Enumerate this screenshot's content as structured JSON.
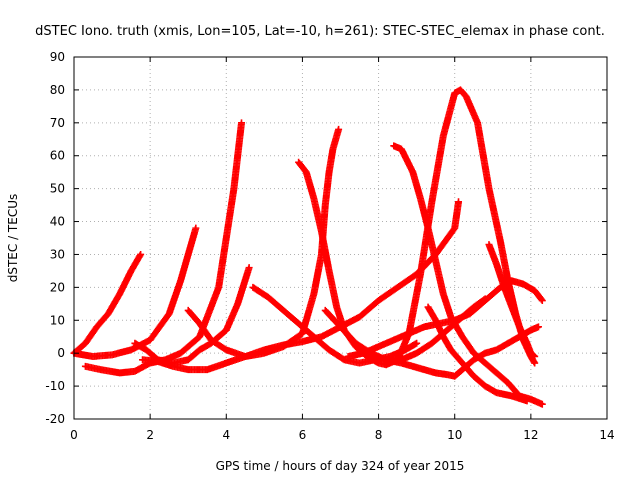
{
  "chart_data": {
    "type": "scatter",
    "title": "dSTEC Iono. truth (xmis, Lon=105, Lat=-10, h=261): STEC-STEC_elemax in phase cont.",
    "xlabel": "GPS time / hours of day 324 of year 2015",
    "ylabel": "dSTEC  / TECUs",
    "xlim": [
      0,
      14
    ],
    "ylim": [
      -20,
      90
    ],
    "xticks": [
      "0",
      "2",
      "4",
      "6",
      "8",
      "10",
      "12",
      "14"
    ],
    "yticks": [
      "-20",
      "-10",
      "0",
      "10",
      "20",
      "30",
      "40",
      "50",
      "60",
      "70",
      "80",
      "90"
    ],
    "grid": true,
    "marker": "+",
    "marker_color": "#ff0000",
    "series": [
      {
        "points": [
          [
            0.0,
            0
          ],
          [
            0.3,
            3
          ],
          [
            0.6,
            8
          ],
          [
            0.9,
            12
          ],
          [
            1.2,
            18
          ],
          [
            1.5,
            25
          ],
          [
            1.75,
            30
          ]
        ]
      },
      {
        "points": [
          [
            0.0,
            0
          ],
          [
            0.5,
            -1
          ],
          [
            1.0,
            -0.5
          ],
          [
            1.5,
            1
          ],
          [
            2.0,
            4
          ],
          [
            2.5,
            12
          ],
          [
            2.8,
            22
          ],
          [
            3.2,
            38
          ]
        ]
      },
      {
        "points": [
          [
            0.3,
            -4
          ],
          [
            0.7,
            -5
          ],
          [
            1.2,
            -6
          ],
          [
            1.6,
            -5.5
          ],
          [
            2.0,
            -3
          ],
          [
            2.4,
            -2
          ],
          [
            2.8,
            0
          ],
          [
            3.3,
            5
          ],
          [
            3.8,
            20
          ],
          [
            4.2,
            50
          ],
          [
            4.4,
            70
          ]
        ]
      },
      {
        "points": [
          [
            1.6,
            3
          ],
          [
            1.9,
            1
          ],
          [
            2.2,
            -2
          ],
          [
            2.6,
            -3
          ],
          [
            3.0,
            -2
          ],
          [
            3.3,
            1
          ],
          [
            3.6,
            3
          ],
          [
            4.0,
            7
          ],
          [
            4.3,
            15
          ],
          [
            4.6,
            26
          ]
        ]
      },
      {
        "points": [
          [
            1.8,
            -2
          ],
          [
            2.2,
            -2.5
          ],
          [
            2.6,
            -4
          ],
          [
            3.0,
            -5
          ],
          [
            3.5,
            -5
          ],
          [
            4.0,
            -3
          ],
          [
            4.5,
            -1
          ],
          [
            5.0,
            1
          ],
          [
            5.5,
            2.5
          ],
          [
            6.0,
            3.5
          ],
          [
            6.5,
            5
          ],
          [
            7.0,
            8
          ],
          [
            7.5,
            11
          ],
          [
            8.0,
            16
          ],
          [
            8.5,
            20
          ],
          [
            9.0,
            24
          ],
          [
            9.5,
            30
          ],
          [
            10.0,
            38
          ],
          [
            10.1,
            46
          ]
        ]
      },
      {
        "points": [
          [
            3.0,
            13
          ],
          [
            3.3,
            9
          ],
          [
            3.6,
            4
          ],
          [
            4.0,
            1
          ],
          [
            4.5,
            -1
          ],
          [
            5.0,
            0
          ],
          [
            5.5,
            2
          ],
          [
            6.0,
            6
          ],
          [
            6.3,
            18
          ],
          [
            6.5,
            30
          ],
          [
            6.6,
            45
          ],
          [
            6.7,
            55
          ],
          [
            6.8,
            62
          ],
          [
            6.95,
            68
          ]
        ]
      },
      {
        "points": [
          [
            4.7,
            20
          ],
          [
            5.1,
            17
          ],
          [
            5.5,
            13
          ],
          [
            5.9,
            9
          ],
          [
            6.3,
            5
          ],
          [
            6.7,
            1
          ],
          [
            7.1,
            -2
          ],
          [
            7.5,
            -3
          ],
          [
            7.9,
            -2
          ],
          [
            8.3,
            -1
          ],
          [
            8.7,
            1
          ],
          [
            9.0,
            3
          ]
        ]
      },
      {
        "points": [
          [
            5.9,
            58
          ],
          [
            6.1,
            55
          ],
          [
            6.3,
            47
          ],
          [
            6.5,
            37
          ],
          [
            6.7,
            25
          ],
          [
            6.9,
            14
          ],
          [
            7.1,
            7
          ],
          [
            7.4,
            2
          ],
          [
            7.7,
            -1
          ],
          [
            8.0,
            -3
          ],
          [
            8.2,
            -3.5
          ],
          [
            8.5,
            -2
          ],
          [
            8.8,
            6
          ],
          [
            9.1,
            24
          ],
          [
            9.4,
            46
          ],
          [
            9.7,
            66
          ],
          [
            10.0,
            79
          ],
          [
            10.15,
            80
          ],
          [
            10.3,
            78
          ],
          [
            10.6,
            70
          ],
          [
            10.9,
            50
          ],
          [
            11.2,
            34
          ],
          [
            11.4,
            22
          ],
          [
            11.6,
            12
          ],
          [
            11.8,
            4
          ],
          [
            12.0,
            -1
          ],
          [
            12.1,
            -3
          ]
        ]
      },
      {
        "points": [
          [
            6.6,
            13
          ],
          [
            7.0,
            8
          ],
          [
            7.4,
            3
          ],
          [
            7.8,
            0
          ],
          [
            8.2,
            -2
          ],
          [
            8.6,
            -3
          ],
          [
            8.9,
            -4
          ],
          [
            9.2,
            -5
          ],
          [
            9.5,
            -6
          ],
          [
            9.8,
            -6.5
          ],
          [
            10.0,
            -7
          ],
          [
            10.2,
            -5
          ],
          [
            10.5,
            -2
          ],
          [
            10.8,
            0
          ],
          [
            11.1,
            1
          ],
          [
            11.4,
            3
          ],
          [
            11.7,
            5
          ],
          [
            12.0,
            7
          ],
          [
            12.2,
            8
          ]
        ]
      },
      {
        "points": [
          [
            8.4,
            63
          ],
          [
            8.6,
            62
          ],
          [
            8.9,
            55
          ],
          [
            9.1,
            47
          ],
          [
            9.3,
            38
          ],
          [
            9.5,
            28
          ],
          [
            9.7,
            18
          ],
          [
            9.9,
            11
          ],
          [
            10.2,
            5
          ],
          [
            10.5,
            0
          ],
          [
            10.8,
            -3
          ],
          [
            11.1,
            -6
          ],
          [
            11.4,
            -9
          ],
          [
            11.7,
            -13
          ],
          [
            12.0,
            -14
          ],
          [
            12.3,
            -15.5
          ]
        ]
      },
      {
        "points": [
          [
            9.3,
            14
          ],
          [
            9.5,
            10
          ],
          [
            9.7,
            5
          ],
          [
            9.9,
            1
          ],
          [
            10.2,
            -3
          ],
          [
            10.5,
            -7
          ],
          [
            10.8,
            -10
          ],
          [
            11.1,
            -12
          ],
          [
            11.5,
            -13
          ],
          [
            11.9,
            -14.5
          ]
        ]
      },
      {
        "points": [
          [
            7.2,
            -1
          ],
          [
            7.6,
            0
          ],
          [
            8.0,
            2
          ],
          [
            8.4,
            4
          ],
          [
            8.8,
            6
          ],
          [
            9.2,
            8
          ],
          [
            9.6,
            9
          ],
          [
            10.0,
            10
          ],
          [
            10.4,
            12
          ],
          [
            10.8,
            16
          ],
          [
            11.2,
            20
          ],
          [
            11.5,
            22
          ],
          [
            11.8,
            21
          ],
          [
            12.1,
            19
          ],
          [
            12.3,
            16
          ]
        ]
      },
      {
        "points": [
          [
            8.2,
            -3
          ],
          [
            8.6,
            -2
          ],
          [
            9.0,
            0
          ],
          [
            9.4,
            3
          ],
          [
            9.8,
            7
          ],
          [
            10.2,
            11
          ],
          [
            10.5,
            14
          ],
          [
            10.8,
            16.5
          ]
        ]
      },
      {
        "points": [
          [
            10.9,
            33
          ],
          [
            11.1,
            27
          ],
          [
            11.3,
            20
          ],
          [
            11.5,
            14
          ],
          [
            11.7,
            8
          ],
          [
            11.9,
            3
          ],
          [
            12.0,
            0
          ],
          [
            12.1,
            -1
          ]
        ]
      }
    ]
  }
}
